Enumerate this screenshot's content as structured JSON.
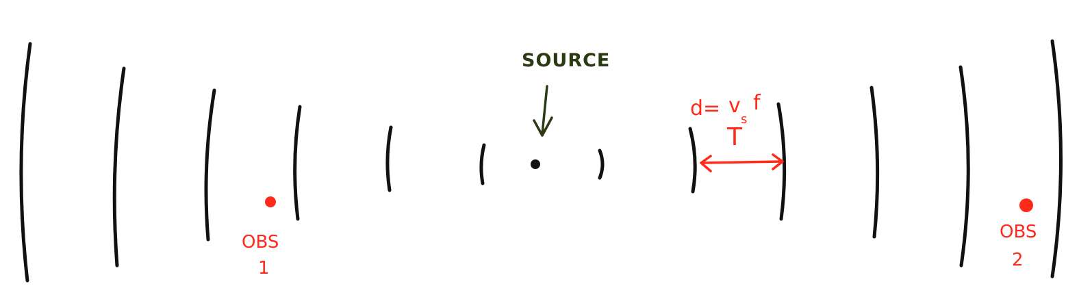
{
  "diagram": {
    "source_label": "SOURCE",
    "observer1": {
      "label": "OBS",
      "number": "1"
    },
    "observer2": {
      "label": "OBS",
      "number": "2"
    },
    "formula": {
      "lhs": "d=",
      "numerator": "v",
      "subscript": "s",
      "numerator_tail": "f",
      "denominator": "T"
    },
    "colors": {
      "wavefront": "#111111",
      "annotation_red": "#ff2a1a",
      "source_label": "#2c3a12"
    }
  }
}
